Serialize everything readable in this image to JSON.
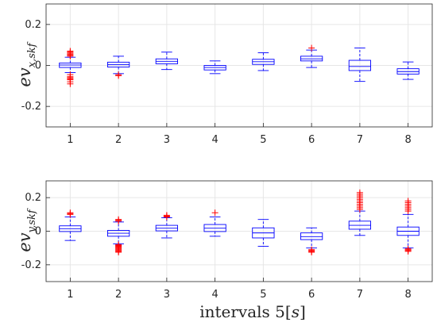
{
  "chart_data": [
    {
      "type": "box",
      "ylabel_main": "ev",
      "ylabel_sub": "x,skf",
      "xlabel": "",
      "categories": [
        "1",
        "2",
        "3",
        "4",
        "5",
        "6",
        "7",
        "8"
      ],
      "ylim": [
        -0.3,
        0.3
      ],
      "yticks": [
        -0.2,
        0,
        0.2
      ],
      "ytick_labels": [
        "-0.2",
        "0",
        "0.2"
      ],
      "grid": true,
      "box_color": "#0000ff",
      "outlier_color": "#ff0000",
      "boxes": [
        {
          "whislo": -0.035,
          "q1": -0.01,
          "med": 0.002,
          "q3": 0.012,
          "whishi": 0.04,
          "fliers": [
            -0.045,
            -0.055,
            -0.06,
            -0.065,
            -0.07,
            -0.08,
            -0.09,
            0.045,
            0.05,
            0.055,
            0.06,
            0.065,
            0.07
          ]
        },
        {
          "whislo": -0.04,
          "q1": -0.008,
          "med": 0.004,
          "q3": 0.016,
          "whishi": 0.045,
          "fliers": [
            -0.045,
            -0.05
          ]
        },
        {
          "whislo": -0.02,
          "q1": 0.008,
          "med": 0.02,
          "q3": 0.032,
          "whishi": 0.065,
          "fliers": []
        },
        {
          "whislo": -0.04,
          "q1": -0.022,
          "med": -0.01,
          "q3": 0.0,
          "whishi": 0.022,
          "fliers": []
        },
        {
          "whislo": -0.025,
          "q1": 0.005,
          "med": 0.018,
          "q3": 0.03,
          "whishi": 0.062,
          "fliers": []
        },
        {
          "whislo": -0.01,
          "q1": 0.022,
          "med": 0.032,
          "q3": 0.045,
          "whishi": 0.075,
          "fliers": [
            0.085
          ]
        },
        {
          "whislo": -0.078,
          "q1": -0.025,
          "med": -0.005,
          "q3": 0.025,
          "whishi": 0.085,
          "fliers": []
        },
        {
          "whislo": -0.068,
          "q1": -0.042,
          "med": -0.03,
          "q3": -0.016,
          "whishi": 0.017,
          "fliers": []
        }
      ]
    },
    {
      "type": "box",
      "ylabel_main": "ev",
      "ylabel_sub": "y,skf",
      "xlabel_main": "intervals 5[",
      "xlabel_italic": "s",
      "xlabel_end": "]",
      "categories": [
        "1",
        "2",
        "3",
        "4",
        "5",
        "6",
        "7",
        "8"
      ],
      "ylim": [
        -0.3,
        0.3
      ],
      "yticks": [
        -0.2,
        0,
        0.2
      ],
      "ytick_labels": [
        "-0.2",
        "0",
        "0.2"
      ],
      "grid": true,
      "box_color": "#0000ff",
      "outlier_color": "#ff0000",
      "boxes": [
        {
          "whislo": -0.055,
          "q1": -0.002,
          "med": 0.015,
          "q3": 0.032,
          "whishi": 0.085,
          "fliers": [
            0.1,
            0.105,
            0.11
          ]
        },
        {
          "whislo": -0.075,
          "q1": -0.03,
          "med": -0.012,
          "q3": 0.005,
          "whishi": 0.055,
          "fliers": [
            -0.08,
            -0.085,
            -0.09,
            -0.095,
            -0.1,
            -0.105,
            -0.11,
            -0.115,
            -0.12,
            -0.125,
            0.06,
            0.065,
            0.07
          ]
        },
        {
          "whislo": -0.04,
          "q1": 0.002,
          "med": 0.018,
          "q3": 0.035,
          "whishi": 0.08,
          "fliers": [
            0.085,
            0.09,
            0.095
          ]
        },
        {
          "whislo": -0.03,
          "q1": -0.002,
          "med": 0.018,
          "q3": 0.04,
          "whishi": 0.085,
          "fliers": [
            0.11
          ]
        },
        {
          "whislo": -0.09,
          "q1": -0.04,
          "med": -0.01,
          "q3": 0.02,
          "whishi": 0.07,
          "fliers": []
        },
        {
          "whislo": -0.1,
          "q1": -0.05,
          "med": -0.032,
          "q3": -0.01,
          "whishi": 0.02,
          "fliers": [
            -0.11,
            -0.115,
            -0.12,
            -0.125
          ]
        },
        {
          "whislo": -0.025,
          "q1": 0.012,
          "med": 0.035,
          "q3": 0.06,
          "whishi": 0.12,
          "fliers": [
            0.13,
            0.14,
            0.15,
            0.16,
            0.17,
            0.18,
            0.19,
            0.2,
            0.21,
            0.22,
            0.23
          ]
        },
        {
          "whislo": -0.1,
          "q1": -0.025,
          "med": 0.0,
          "q3": 0.025,
          "whishi": 0.1,
          "fliers": [
            -0.105,
            -0.11,
            -0.115,
            -0.12,
            0.12,
            0.13,
            0.14,
            0.15,
            0.16,
            0.17,
            0.18
          ]
        }
      ]
    }
  ]
}
